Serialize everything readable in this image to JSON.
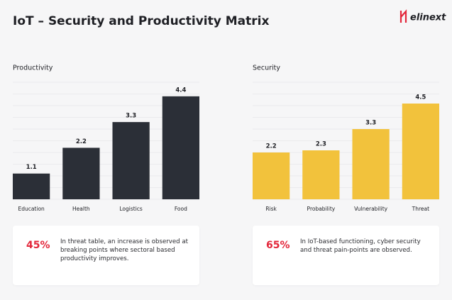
{
  "title": "IoT – Security and Productivity Matrix",
  "logo": "elinext",
  "chart_data": [
    {
      "type": "bar",
      "title": "Productivity",
      "categories": [
        "Education",
        "Health",
        "Logistics",
        "Food"
      ],
      "values": [
        1.1,
        2.2,
        3.3,
        4.4
      ],
      "color": "#2b2f37",
      "ylim": [
        0,
        5
      ],
      "grid": true,
      "callout": {
        "figure": {
          "value": 45,
          "label": "45%"
        },
        "text": "In threat table, an increase is observed at breaking points where sectoral based productivity improves."
      }
    },
    {
      "type": "bar",
      "title": "Security",
      "categories": [
        "Risk",
        "Probability",
        "Vulnerability",
        "Threat"
      ],
      "values": [
        2.2,
        2.3,
        3.3,
        4.5
      ],
      "color": "#f2c23c",
      "ylim": [
        0,
        5.5
      ],
      "grid": true,
      "callout": {
        "figure": {
          "value": 65,
          "label": "65%"
        },
        "text": "In IoT-based functioning, cyber security and threat pain-points are observed."
      }
    }
  ]
}
